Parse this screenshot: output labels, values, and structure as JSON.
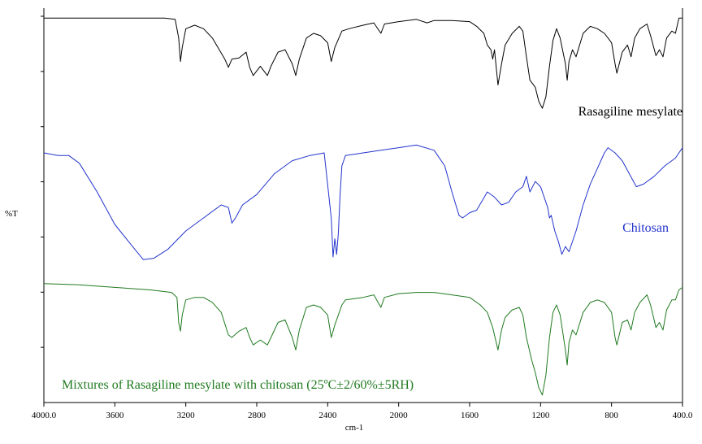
{
  "chart_data": {
    "type": "line",
    "title": "",
    "xlabel": "cm-1",
    "ylabel": "%T",
    "xlim": [
      4000.0,
      400.0
    ],
    "x_reversed": true,
    "grid": false,
    "x_ticks": [
      "4000.0",
      "3600",
      "3200",
      "2800",
      "2400",
      "2000",
      "1600",
      "1200",
      "800",
      "400.0"
    ],
    "x_tick_values": [
      4000,
      3600,
      3200,
      2800,
      2400,
      2000,
      1600,
      1200,
      800,
      400
    ],
    "y_ticks_count": 7,
    "series": [
      {
        "name": "Rasagiline mesylate",
        "color": "#000000",
        "label_position": "right, below curve",
        "points": [
          [
            4000,
            97
          ],
          [
            3700,
            97
          ],
          [
            3320,
            97
          ],
          [
            3260,
            96
          ],
          [
            3240,
            80
          ],
          [
            3230,
            60
          ],
          [
            3220,
            72
          ],
          [
            3200,
            88
          ],
          [
            3150,
            91
          ],
          [
            3100,
            88
          ],
          [
            3050,
            80
          ],
          [
            2980,
            62
          ],
          [
            2960,
            55
          ],
          [
            2940,
            62
          ],
          [
            2900,
            63
          ],
          [
            2860,
            68
          ],
          [
            2840,
            55
          ],
          [
            2820,
            48
          ],
          [
            2780,
            56
          ],
          [
            2740,
            48
          ],
          [
            2720,
            56
          ],
          [
            2680,
            68
          ],
          [
            2640,
            70
          ],
          [
            2600,
            58
          ],
          [
            2580,
            48
          ],
          [
            2560,
            62
          ],
          [
            2520,
            80
          ],
          [
            2480,
            84
          ],
          [
            2440,
            82
          ],
          [
            2400,
            76
          ],
          [
            2380,
            60
          ],
          [
            2360,
            72
          ],
          [
            2320,
            86
          ],
          [
            2280,
            88
          ],
          [
            2200,
            91
          ],
          [
            2140,
            93
          ],
          [
            2100,
            84
          ],
          [
            2080,
            92
          ],
          [
            2000,
            94
          ],
          [
            1900,
            96
          ],
          [
            1840,
            93
          ],
          [
            1800,
            95
          ],
          [
            1700,
            95
          ],
          [
            1600,
            94
          ],
          [
            1560,
            90
          ],
          [
            1520,
            84
          ],
          [
            1500,
            74
          ],
          [
            1480,
            70
          ],
          [
            1470,
            62
          ],
          [
            1460,
            70
          ],
          [
            1440,
            40
          ],
          [
            1420,
            58
          ],
          [
            1400,
            74
          ],
          [
            1360,
            84
          ],
          [
            1320,
            90
          ],
          [
            1300,
            86
          ],
          [
            1280,
            64
          ],
          [
            1260,
            44
          ],
          [
            1230,
            38
          ],
          [
            1210,
            26
          ],
          [
            1190,
            20
          ],
          [
            1170,
            30
          ],
          [
            1150,
            56
          ],
          [
            1130,
            78
          ],
          [
            1110,
            88
          ],
          [
            1090,
            80
          ],
          [
            1060,
            58
          ],
          [
            1050,
            44
          ],
          [
            1040,
            60
          ],
          [
            1020,
            70
          ],
          [
            1000,
            64
          ],
          [
            960,
            84
          ],
          [
            920,
            90
          ],
          [
            880,
            88
          ],
          [
            840,
            84
          ],
          [
            800,
            76
          ],
          [
            780,
            58
          ],
          [
            770,
            50
          ],
          [
            760,
            56
          ],
          [
            740,
            68
          ],
          [
            710,
            74
          ],
          [
            690,
            64
          ],
          [
            670,
            80
          ],
          [
            640,
            88
          ],
          [
            600,
            92
          ],
          [
            580,
            82
          ],
          [
            550,
            65
          ],
          [
            530,
            70
          ],
          [
            510,
            64
          ],
          [
            490,
            80
          ],
          [
            460,
            86
          ],
          [
            440,
            84
          ],
          [
            420,
            97
          ],
          [
            400,
            97
          ]
        ]
      },
      {
        "name": "Chitosan",
        "color": "#2233cc",
        "label_position": "right, below curve",
        "points": [
          [
            4000,
            90
          ],
          [
            3920,
            88
          ],
          [
            3860,
            88
          ],
          [
            3800,
            82
          ],
          [
            3700,
            60
          ],
          [
            3600,
            35
          ],
          [
            3500,
            18
          ],
          [
            3440,
            8
          ],
          [
            3380,
            9
          ],
          [
            3300,
            16
          ],
          [
            3200,
            30
          ],
          [
            3100,
            40
          ],
          [
            3000,
            50
          ],
          [
            2960,
            48
          ],
          [
            2940,
            36
          ],
          [
            2920,
            40
          ],
          [
            2880,
            50
          ],
          [
            2800,
            58
          ],
          [
            2700,
            74
          ],
          [
            2600,
            84
          ],
          [
            2500,
            88
          ],
          [
            2420,
            90
          ],
          [
            2380,
            40
          ],
          [
            2370,
            10
          ],
          [
            2360,
            24
          ],
          [
            2350,
            12
          ],
          [
            2340,
            28
          ],
          [
            2330,
            58
          ],
          [
            2320,
            80
          ],
          [
            2300,
            88
          ],
          [
            2200,
            90
          ],
          [
            2100,
            92
          ],
          [
            2000,
            94
          ],
          [
            1900,
            96
          ],
          [
            1800,
            92
          ],
          [
            1740,
            80
          ],
          [
            1700,
            60
          ],
          [
            1660,
            42
          ],
          [
            1640,
            40
          ],
          [
            1600,
            44
          ],
          [
            1560,
            46
          ],
          [
            1500,
            60
          ],
          [
            1460,
            56
          ],
          [
            1420,
            50
          ],
          [
            1380,
            52
          ],
          [
            1340,
            60
          ],
          [
            1300,
            64
          ],
          [
            1280,
            72
          ],
          [
            1260,
            60
          ],
          [
            1230,
            68
          ],
          [
            1200,
            64
          ],
          [
            1160,
            48
          ],
          [
            1150,
            40
          ],
          [
            1140,
            42
          ],
          [
            1120,
            30
          ],
          [
            1100,
            22
          ],
          [
            1080,
            12
          ],
          [
            1060,
            18
          ],
          [
            1040,
            14
          ],
          [
            1000,
            30
          ],
          [
            960,
            50
          ],
          [
            920,
            66
          ],
          [
            880,
            78
          ],
          [
            840,
            90
          ],
          [
            820,
            94
          ],
          [
            780,
            90
          ],
          [
            740,
            84
          ],
          [
            700,
            74
          ],
          [
            660,
            64
          ],
          [
            620,
            66
          ],
          [
            560,
            72
          ],
          [
            500,
            80
          ],
          [
            440,
            86
          ],
          [
            400,
            94
          ]
        ]
      },
      {
        "name": "Mixtures of Rasagiline mesylate with chitosan (25ºC±2/60%±5RH)",
        "color": "#207a20",
        "label_position": "bottom-left, below curve",
        "points": [
          [
            4000,
            93
          ],
          [
            3800,
            92
          ],
          [
            3600,
            90
          ],
          [
            3400,
            88
          ],
          [
            3280,
            86
          ],
          [
            3250,
            82
          ],
          [
            3240,
            62
          ],
          [
            3230,
            55
          ],
          [
            3220,
            68
          ],
          [
            3200,
            80
          ],
          [
            3150,
            82
          ],
          [
            3100,
            82
          ],
          [
            3050,
            78
          ],
          [
            3000,
            70
          ],
          [
            2960,
            52
          ],
          [
            2940,
            50
          ],
          [
            2900,
            55
          ],
          [
            2860,
            58
          ],
          [
            2840,
            50
          ],
          [
            2820,
            44
          ],
          [
            2780,
            48
          ],
          [
            2740,
            44
          ],
          [
            2720,
            50
          ],
          [
            2680,
            62
          ],
          [
            2640,
            64
          ],
          [
            2600,
            50
          ],
          [
            2580,
            40
          ],
          [
            2560,
            56
          ],
          [
            2520,
            74
          ],
          [
            2480,
            76
          ],
          [
            2440,
            74
          ],
          [
            2400,
            68
          ],
          [
            2380,
            50
          ],
          [
            2360,
            60
          ],
          [
            2320,
            76
          ],
          [
            2300,
            80
          ],
          [
            2200,
            82
          ],
          [
            2140,
            84
          ],
          [
            2100,
            74
          ],
          [
            2080,
            82
          ],
          [
            2000,
            85
          ],
          [
            1900,
            86
          ],
          [
            1800,
            86
          ],
          [
            1700,
            84
          ],
          [
            1600,
            82
          ],
          [
            1540,
            76
          ],
          [
            1500,
            70
          ],
          [
            1470,
            58
          ],
          [
            1440,
            40
          ],
          [
            1420,
            56
          ],
          [
            1400,
            66
          ],
          [
            1360,
            72
          ],
          [
            1320,
            74
          ],
          [
            1300,
            68
          ],
          [
            1280,
            50
          ],
          [
            1250,
            32
          ],
          [
            1230,
            22
          ],
          [
            1210,
            10
          ],
          [
            1190,
            4
          ],
          [
            1170,
            20
          ],
          [
            1150,
            50
          ],
          [
            1130,
            70
          ],
          [
            1110,
            76
          ],
          [
            1090,
            68
          ],
          [
            1060,
            40
          ],
          [
            1050,
            28
          ],
          [
            1040,
            46
          ],
          [
            1020,
            56
          ],
          [
            1000,
            52
          ],
          [
            960,
            70
          ],
          [
            920,
            78
          ],
          [
            880,
            80
          ],
          [
            840,
            78
          ],
          [
            800,
            70
          ],
          [
            780,
            50
          ],
          [
            770,
            44
          ],
          [
            760,
            50
          ],
          [
            740,
            62
          ],
          [
            710,
            64
          ],
          [
            690,
            56
          ],
          [
            670,
            70
          ],
          [
            640,
            78
          ],
          [
            600,
            84
          ],
          [
            580,
            76
          ],
          [
            550,
            58
          ],
          [
            530,
            62
          ],
          [
            510,
            56
          ],
          [
            490,
            72
          ],
          [
            460,
            80
          ],
          [
            440,
            80
          ],
          [
            420,
            88
          ],
          [
            400,
            90
          ]
        ]
      }
    ]
  }
}
